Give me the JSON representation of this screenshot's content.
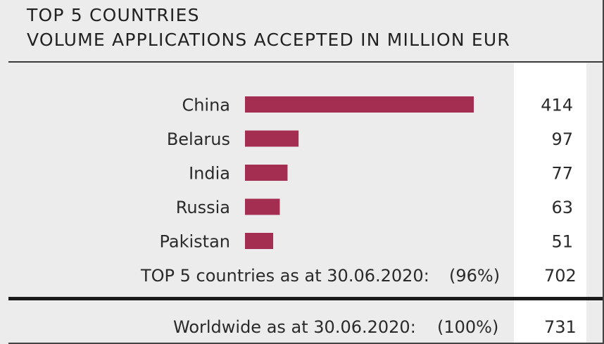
{
  "chart_data": {
    "type": "bar",
    "orientation": "horizontal",
    "title": "TOP 5 COUNTRIES",
    "subtitle": "VOLUME APPLICATIONS ACCEPTED IN MILLION EUR",
    "categories": [
      "China",
      "Belarus",
      "India",
      "Russia",
      "Pakistan"
    ],
    "values": [
      414,
      97,
      77,
      63,
      51
    ],
    "value_labels": [
      "414",
      "97",
      "77",
      "63",
      "51"
    ],
    "bar_color": "#a32e52",
    "grid": false,
    "legend": "none",
    "xlim": [
      0,
      414
    ]
  },
  "totals": {
    "top5": {
      "label": "TOP 5 countries as at 30.06.2020:",
      "share": "(96%)",
      "value": "702"
    },
    "worldwide": {
      "label": "Worldwide as at 30.06.2020:",
      "share": "(100%)",
      "value": "731"
    }
  }
}
